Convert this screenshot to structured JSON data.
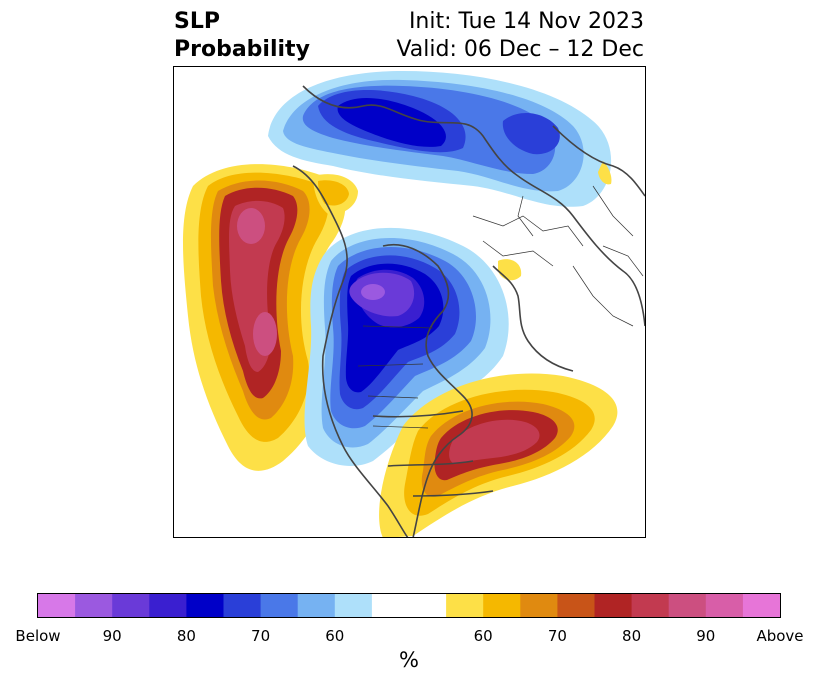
{
  "title": {
    "left_line1": "SLP",
    "left_line2": "Probability",
    "right_line1": "Init: Tue 14 Nov 2023",
    "right_line2": "Valid: 06 Dec – 12 Dec"
  },
  "colorbar": {
    "unit": "%",
    "colors": [
      "#d778e8",
      "#9b59e0",
      "#6a3ad8",
      "#3a1fd0",
      "#0000c8",
      "#2a3fd8",
      "#4a78e8",
      "#76b2f2",
      "#aee0fa",
      "#ffffff",
      "#ffffff",
      "#fde047",
      "#f5b800",
      "#e08a10",
      "#c85418",
      "#b02424",
      "#c23a50",
      "#cc4f80",
      "#d85ea8",
      "#e775d8"
    ],
    "tick_labels": [
      "Below",
      "90",
      "80",
      "70",
      "60",
      "60",
      "70",
      "80",
      "90",
      "Above"
    ]
  },
  "map": {
    "legend_colors": {
      "below_strong": "#0000c8",
      "below_weak": "#aee0fa",
      "above_strong": "#c23a50",
      "above_weak": "#fde047"
    }
  }
}
